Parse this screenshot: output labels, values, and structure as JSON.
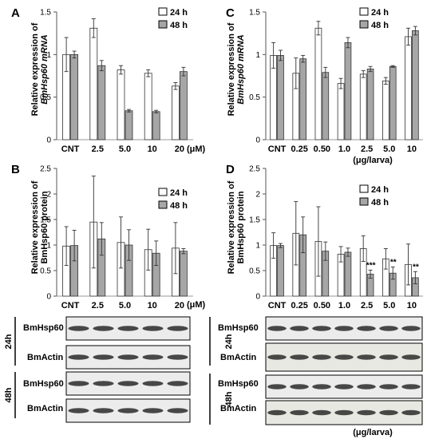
{
  "figure": {
    "panels": [
      {
        "letter": "A",
        "ylabel_line1": "Relative expression of",
        "ylabel_line2": "BmHsp60 mRNA",
        "yticks": [
          "0",
          "0.5",
          "1",
          "1.5"
        ],
        "unit": "(μM)",
        "unit2": ""
      },
      {
        "letter": "B",
        "ylabel_line1": "Relative expression of",
        "ylabel_line2": "BmHsp60 protein",
        "yticks": [
          "0",
          "0.5",
          "1",
          "1.5",
          "2",
          "2.5"
        ],
        "unit": "(μM)",
        "unit2": ""
      },
      {
        "letter": "C",
        "ylabel_line1": "Relative expression of",
        "ylabel_line2": "BmHsp60 mRNA",
        "yticks": [
          "0",
          "0.5",
          "1",
          "1.5"
        ],
        "unit": "",
        "unit2": "(μg/larva)"
      },
      {
        "letter": "D",
        "ylabel_line1": "Relative expression of",
        "ylabel_line2": "BmHsp60 protein",
        "yticks": [
          "0",
          "0.5",
          "1",
          "1.5",
          "2",
          "2.5"
        ],
        "unit": "",
        "unit2": ""
      }
    ],
    "legend": {
      "s24": "24 h",
      "s48": "48 h"
    },
    "blots": {
      "left": {
        "groups": [
          {
            "time": "24h",
            "rows": [
              "BmHsp60",
              "BmActin"
            ]
          },
          {
            "time": "48h",
            "rows": [
              "BmHsp60",
              "BmActin"
            ]
          }
        ],
        "footer": ""
      },
      "right": {
        "groups": [
          {
            "time": "24h",
            "rows": [
              "BmHsp60",
              "BmActin"
            ]
          },
          {
            "time": "48h",
            "rows": [
              "BmHsp60",
              "BmActin"
            ]
          }
        ],
        "footer": "(μg/larva)"
      }
    }
  },
  "chart_data": [
    {
      "panel": "A",
      "type": "bar",
      "ylabel": "Relative expression of BmHsp60 mRNA",
      "ylim": [
        0,
        1.5
      ],
      "categories": [
        "CNT",
        "2.5",
        "5.0",
        "10",
        "20"
      ],
      "x_unit": "(μM)",
      "series": [
        {
          "name": "24 h",
          "values": [
            1.0,
            1.31,
            0.82,
            0.78,
            0.63
          ],
          "errors": [
            0.2,
            0.11,
            0.05,
            0.04,
            0.04
          ]
        },
        {
          "name": "48 h",
          "values": [
            1.0,
            0.87,
            0.34,
            0.33,
            0.8
          ],
          "errors": [
            0.04,
            0.06,
            0.015,
            0.015,
            0.05
          ]
        }
      ],
      "annotations": []
    },
    {
      "panel": "B",
      "type": "bar",
      "ylabel": "Relative expression of BmHsp60 protein",
      "ylim": [
        0,
        2.5
      ],
      "categories": [
        "CNT",
        "2.5",
        "5.0",
        "10",
        "20"
      ],
      "x_unit": "(μM)",
      "series": [
        {
          "name": "24 h",
          "values": [
            0.98,
            1.45,
            1.05,
            0.91,
            0.94
          ],
          "errors": [
            0.38,
            0.9,
            0.5,
            0.4,
            0.5
          ]
        },
        {
          "name": "48 h",
          "values": [
            0.99,
            1.12,
            1.0,
            0.84,
            0.88
          ],
          "errors": [
            0.3,
            0.32,
            0.3,
            0.24,
            0.05
          ]
        }
      ],
      "annotations": []
    },
    {
      "panel": "C",
      "type": "bar",
      "ylabel": "Relative expression of BmHsp60 mRNA",
      "ylim": [
        0,
        1.5
      ],
      "categories": [
        "CNT",
        "0.25",
        "0.50",
        "1.0",
        "2.5",
        "5.0",
        "10"
      ],
      "x_unit": "(μg/larva)",
      "series": [
        {
          "name": "24 h",
          "values": [
            0.99,
            0.78,
            1.31,
            0.66,
            0.77,
            0.69,
            1.21
          ],
          "errors": [
            0.15,
            0.18,
            0.08,
            0.06,
            0.04,
            0.04,
            0.1
          ]
        },
        {
          "name": "48 h",
          "values": [
            0.99,
            0.95,
            0.79,
            1.14,
            0.83,
            0.86,
            1.28
          ],
          "errors": [
            0.06,
            0.04,
            0.06,
            0.06,
            0.03,
            0.01,
            0.05
          ]
        }
      ],
      "annotations": []
    },
    {
      "panel": "D",
      "type": "bar",
      "ylabel": "Relative expression of BmHsp60 protein",
      "ylim": [
        0,
        2.5
      ],
      "categories": [
        "CNT",
        "0.25",
        "0.50",
        "1.0",
        "2.5",
        "5.0",
        "10"
      ],
      "x_unit": "",
      "series": [
        {
          "name": "24 h",
          "values": [
            0.99,
            1.23,
            1.07,
            0.82,
            0.93,
            0.73,
            0.62
          ],
          "errors": [
            0.25,
            0.62,
            0.68,
            0.15,
            0.25,
            0.2,
            0.4
          ]
        },
        {
          "name": "48 h",
          "values": [
            0.99,
            1.2,
            0.88,
            0.86,
            0.43,
            0.45,
            0.36
          ],
          "errors": [
            0.04,
            0.35,
            0.18,
            0.08,
            0.08,
            0.12,
            0.12
          ]
        }
      ],
      "annotations": [
        {
          "category": "2.5",
          "text": "***"
        },
        {
          "category": "5.0",
          "text": "**"
        },
        {
          "category": "10",
          "text": "**"
        }
      ]
    }
  ]
}
